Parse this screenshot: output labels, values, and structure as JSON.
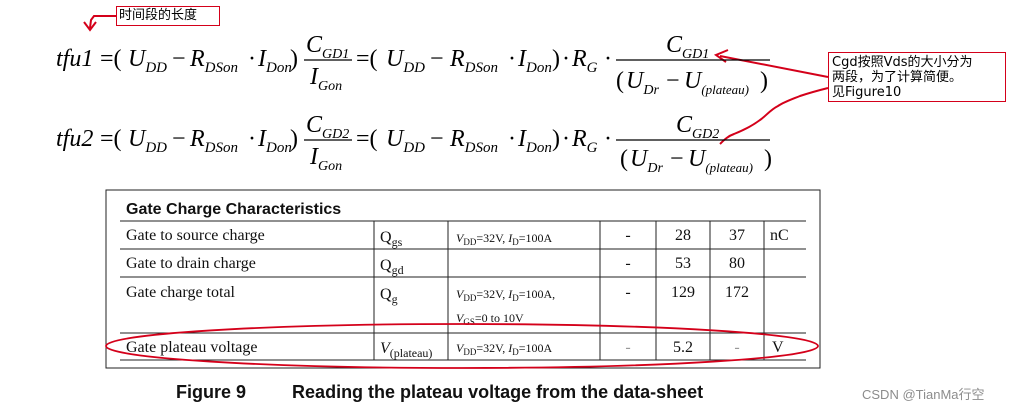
{
  "annotations": {
    "time_length": "时间段的长度",
    "cgd_note": [
      "Cgd按照Vds的大小分为",
      "两段，为了计算简便。",
      "见Figure10"
    ]
  },
  "formula1": {
    "lhs": "tfu1",
    "udd": "U",
    "udd_sub": "DD",
    "rdson": "R",
    "rdson_sub": "DSon",
    "idon": "I",
    "idon_sub": "Don",
    "cgd": "C",
    "cgd_sub": "GD1",
    "igon": "I",
    "igon_sub": "Gon",
    "rg": "R",
    "rg_sub": "G",
    "udr": "U",
    "udr_sub": "Dr",
    "uplat": "U",
    "uplat_sub": "(plateau)"
  },
  "formula2": {
    "lhs": "tfu2",
    "cgd_sub": "GD2"
  },
  "table": {
    "title": "Gate Charge Characteristics",
    "rows": [
      {
        "param": "Gate to source charge",
        "sym": "Q",
        "sym_sub": "gs",
        "cond": "V",
        "cond_sub": "DD",
        "cond_rest": "=32V, ",
        "cond_i": "I",
        "cond_i_sub": "D",
        "cond_rest2": "=100A",
        "min": "-",
        "typ": "28",
        "max": "37",
        "unit": "nC"
      },
      {
        "param": "Gate to drain charge",
        "sym": "Q",
        "sym_sub": "gd",
        "cond": "",
        "min": "-",
        "typ": "53",
        "max": "80",
        "unit": ""
      },
      {
        "param": "Gate charge total",
        "sym": "Q",
        "sym_sub": "g",
        "cond": "V",
        "cond_sub": "DD",
        "cond_rest": "=32V, ",
        "cond_i": "I",
        "cond_i_sub": "D",
        "cond_rest2": "=100A,",
        "cond_line2": "V",
        "cond_line2_sub": "GS",
        "cond_line2_rest": "=0 to 10V",
        "min": "-",
        "typ": "129",
        "max": "172",
        "unit": ""
      },
      {
        "param": "Gate plateau voltage",
        "sym": "V",
        "sym_sub": "(plateau)",
        "cond": "V",
        "cond_sub": "DD",
        "cond_rest": "=32V, ",
        "cond_i": "I",
        "cond_i_sub": "D",
        "cond_rest2": "=100A",
        "min": "-",
        "typ": "5.2",
        "max": "-",
        "unit": "V"
      }
    ]
  },
  "caption": {
    "figure": "Figure 9",
    "text": "Reading the plateau voltage from the data-sheet"
  },
  "watermark": "CSDN @TianMa行空",
  "colors": {
    "annotation_red": "#d4001a"
  }
}
